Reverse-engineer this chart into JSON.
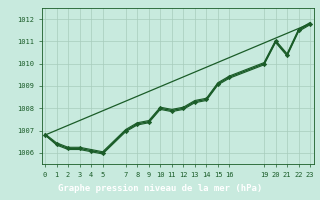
{
  "title": "Graphe pression niveau de la mer (hPa)",
  "bg_color": "#c8eade",
  "plot_bg_color": "#c8eade",
  "label_bg_color": "#5aaa6a",
  "line_color": "#1a5c28",
  "grid_color": "#a8ccbc",
  "axis_label_color": "#ffffff",
  "tick_label_color": "#1a5c28",
  "xlim": [
    -0.3,
    23.3
  ],
  "ylim": [
    1005.5,
    1012.5
  ],
  "yticks": [
    1006,
    1007,
    1008,
    1009,
    1010,
    1011,
    1012
  ],
  "xticks": [
    0,
    1,
    2,
    3,
    4,
    5,
    7,
    8,
    9,
    10,
    11,
    12,
    13,
    14,
    15,
    16,
    19,
    20,
    21,
    22,
    23
  ],
  "lines": [
    {
      "x": [
        0,
        1,
        2,
        3,
        4,
        5,
        7,
        8,
        9,
        10,
        11,
        12,
        13,
        14,
        15,
        16,
        19,
        20,
        21,
        22,
        23
      ],
      "y": [
        1006.8,
        1006.4,
        1006.2,
        1006.2,
        1006.1,
        1006.0,
        1007.0,
        1007.3,
        1007.4,
        1008.0,
        1007.9,
        1008.0,
        1008.3,
        1008.4,
        1009.1,
        1009.4,
        1010.0,
        1011.0,
        1010.4,
        1011.5,
        1011.8
      ],
      "marker": "D",
      "markersize": 2.2,
      "linewidth": 1.0
    },
    {
      "x": [
        0,
        1,
        2,
        3,
        4,
        5,
        7,
        8,
        9,
        10,
        11,
        12,
        13,
        14,
        15,
        16,
        19,
        20,
        21,
        22,
        23
      ],
      "y": [
        1006.8,
        1006.35,
        1006.15,
        1006.15,
        1006.05,
        1005.95,
        1006.95,
        1007.25,
        1007.35,
        1007.95,
        1007.85,
        1007.95,
        1008.25,
        1008.35,
        1009.05,
        1009.35,
        1009.95,
        1010.95,
        1010.35,
        1011.45,
        1011.75
      ],
      "marker": null,
      "markersize": 0,
      "linewidth": 0.8
    },
    {
      "x": [
        0,
        23
      ],
      "y": [
        1006.8,
        1011.8
      ],
      "marker": null,
      "markersize": 0,
      "linewidth": 0.9
    },
    {
      "x": [
        0,
        1,
        2,
        3,
        4,
        5,
        7,
        8,
        9,
        10,
        11,
        12,
        13,
        14,
        15,
        16,
        19,
        20,
        21,
        22,
        23
      ],
      "y": [
        1006.85,
        1006.45,
        1006.25,
        1006.25,
        1006.15,
        1006.05,
        1007.05,
        1007.35,
        1007.45,
        1008.05,
        1007.95,
        1008.05,
        1008.35,
        1008.45,
        1009.15,
        1009.45,
        1010.05,
        1011.05,
        1010.45,
        1011.55,
        1011.85
      ],
      "marker": null,
      "markersize": 0,
      "linewidth": 0.8
    }
  ],
  "title_fontsize": 6.5,
  "tick_fontsize": 5.0
}
